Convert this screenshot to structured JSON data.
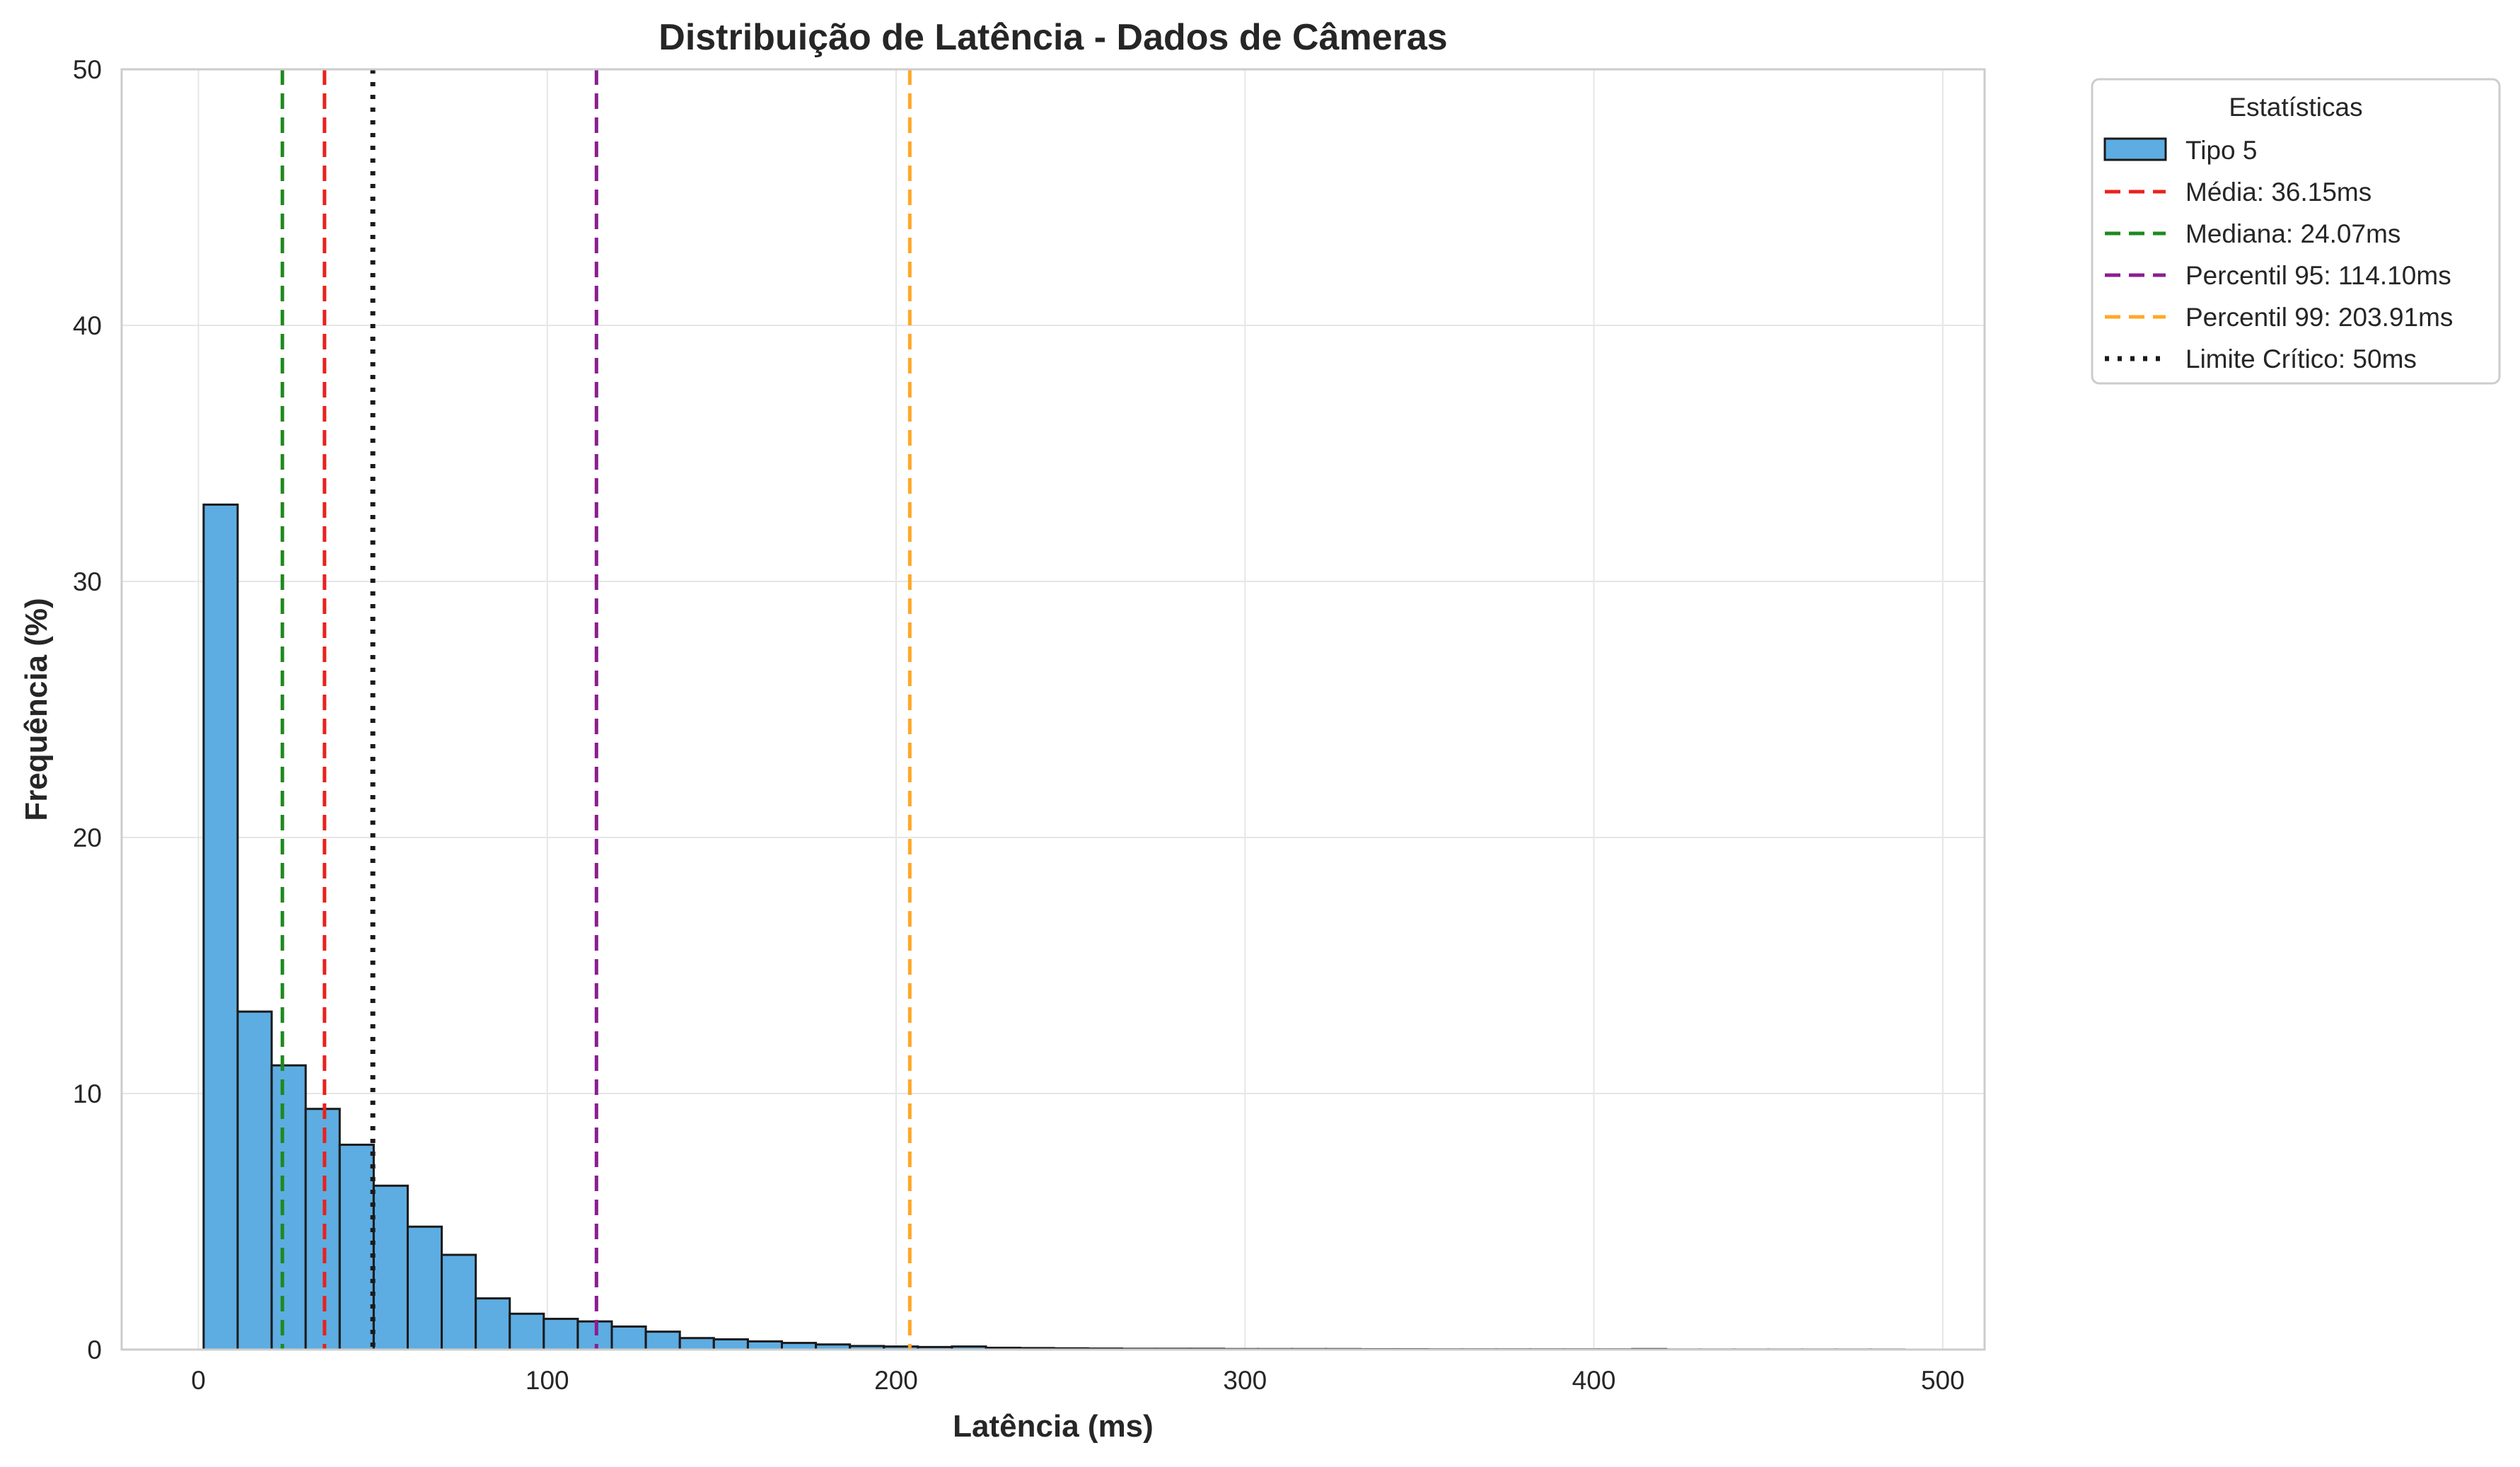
{
  "chart_data": {
    "type": "bar",
    "title": "Distribuição de Latência - Dados de Câmeras",
    "xlabel": "Latência (ms)",
    "ylabel": "Frequência (%)",
    "xlim": [
      -22,
      512
    ],
    "ylim": [
      0,
      50
    ],
    "x_ticks": [
      0,
      100,
      200,
      300,
      400,
      500
    ],
    "y_ticks": [
      0,
      10,
      20,
      30,
      40,
      50
    ],
    "grid": true,
    "legend": {
      "title": "Estatísticas",
      "placement": "outside-right-top"
    },
    "bin_start": 1.5,
    "bin_width": 9.75,
    "series": [
      {
        "name": "Tipo 5",
        "kind": "histogram",
        "color": "#5DADE2",
        "edgecolor": "#1a1a1a",
        "values": [
          33.0,
          13.2,
          11.1,
          9.4,
          8.0,
          6.4,
          4.8,
          3.7,
          2.0,
          1.4,
          1.2,
          1.1,
          0.9,
          0.7,
          0.45,
          0.4,
          0.32,
          0.26,
          0.2,
          0.14,
          0.12,
          0.1,
          0.12,
          0.07,
          0.06,
          0.05,
          0.04,
          0.03,
          0.03,
          0.03,
          0.02,
          0.02,
          0.02,
          0.02,
          0.015,
          0.015,
          0.01,
          0.01,
          0.01,
          0.01,
          0.01,
          0.01,
          0.02,
          0.005,
          0.005,
          0.005,
          0.005,
          0.005,
          0.005,
          0.005
        ]
      }
    ],
    "reference_lines": [
      {
        "name": "Média: 36.15ms",
        "x": 36.15,
        "color": "#E8221D",
        "style": "dashed"
      },
      {
        "name": "Mediana: 24.07ms",
        "x": 24.07,
        "color": "#1E8A1E",
        "style": "dashed"
      },
      {
        "name": "Percentil 95: 114.10ms",
        "x": 114.1,
        "color": "#8A1F8F",
        "style": "dashed"
      },
      {
        "name": "Percentil 99: 203.91ms",
        "x": 203.91,
        "color": "#FFA726",
        "style": "dashed"
      },
      {
        "name": "Limite Crítico: 50ms",
        "x": 50,
        "color": "#1a1a1a",
        "style": "dotted"
      }
    ]
  }
}
